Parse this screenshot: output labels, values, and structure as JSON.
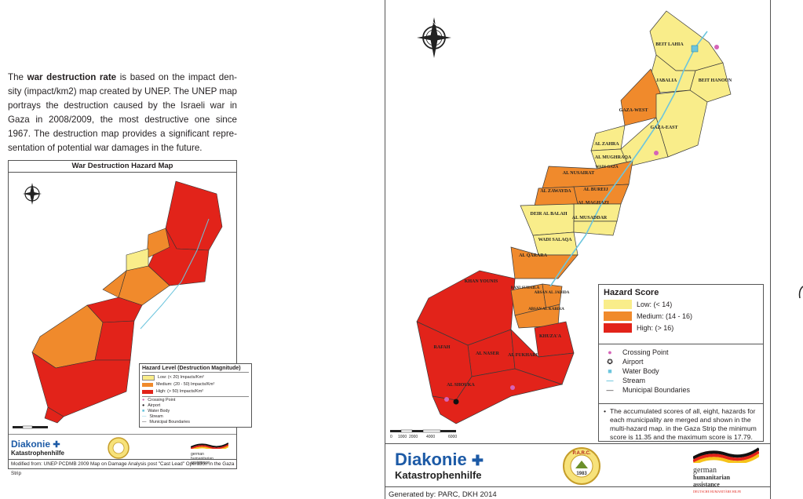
{
  "intro": {
    "text_1": "The ",
    "bold": "war destruction rate",
    "text_2": " is based on the impact den-sity (impact/km2) map created by UNEP. The UNEP map portrays the destruction caused by the Israeli war in Gaza in 2008/2009, the most destructive one since 1967. The destruction map provides a significant repre-sentation of potential war damages in the future."
  },
  "small_map": {
    "title": "War Destruction Hazard Map",
    "legend": {
      "title": "Hazard Level (Destruction Magnitude)",
      "levels": [
        {
          "label": "Low: (< 20) Impacts/Km²",
          "color": "#f9ed8a"
        },
        {
          "label": "Medium: (20 - 50) Impacts/Km²",
          "color": "#f08a2c"
        },
        {
          "label": "High: (> 50) Impacts/Km²",
          "color": "#e2231a"
        }
      ],
      "symbols": [
        {
          "label": "Crossing Point",
          "icon": "crossing-point-icon"
        },
        {
          "label": "Airport",
          "icon": "airport-icon"
        },
        {
          "label": "Water Body",
          "icon": "water-body-icon"
        },
        {
          "label": "Stream",
          "icon": "stream-icon"
        },
        {
          "label": "Municipal Boundaries",
          "icon": "boundary-line-icon"
        }
      ]
    },
    "logos": {
      "diakonie": "Diakonie",
      "diakonie_sub": "Katastrophenhilfe",
      "german_1": "german",
      "german_2": "humanitarian",
      "german_3": "assistance"
    },
    "credit": "Modified from: UNEP PCDMB 2009 Map on Damage Analysis post \"Cast Lead\" Operation in the Gaza Strip"
  },
  "big_map": {
    "place_names": [
      "BEIT LAHIA",
      "BEIT HANOUN",
      "JABALIA",
      "GAZA-WEST",
      "GAZA-EAST",
      "AL ZAHRA",
      "AL MUGHRAQA",
      "AL NUSAIRAT",
      "WADI GAZA",
      "AL ZAWAYDA",
      "AL BUREIJ",
      "AL MAGHAZI",
      "AL MUSADDAR",
      "DEIR AL BALAH",
      "WADI SALAQA",
      "AL QARARA",
      "KHAN YOUNIS",
      "BANI SUHAILA",
      "ABSAN AL JADIDA",
      "ABSAN AL KABIRA",
      "KHUZA'A",
      "AL NASER",
      "AL FUKHARI",
      "RAFAH",
      "AL SHOUKA"
    ],
    "legend": {
      "title": "Hazard Score",
      "levels": [
        {
          "label": "Low: (< 14)",
          "color": "#f9ed8a"
        },
        {
          "label": "Medium: (14 - 16)",
          "color": "#f08a2c"
        },
        {
          "label": "High: (> 16)",
          "color": "#e2231a"
        }
      ],
      "symbols": [
        {
          "label": "Crossing Point",
          "icon": "crossing-point-icon"
        },
        {
          "label": "Airport",
          "icon": "airport-icon"
        },
        {
          "label": "Water Body",
          "icon": "water-body-icon"
        },
        {
          "label": "Stream",
          "icon": "stream-icon"
        },
        {
          "label": "Municipal Boundaries",
          "icon": "boundary-line-icon"
        }
      ],
      "note": "The accumulated scores of all, eight, hazards for each municipality are merged and shown in the multi-hazard map. in the Gaza Strip the minimum score is 11.35 and the maximum score is 17.79."
    },
    "scale_labels": [
      "0",
      "1000",
      "2000",
      "4000",
      "6000"
    ],
    "logos": {
      "diakonie": "Diakonie",
      "diakonie_sub": "Katastrophenhilfe",
      "seal": "P.A.R.C.",
      "seal_year": "1983",
      "german_1": "german",
      "german_2": "humanitarian",
      "german_3": "assistance",
      "german_4": "DEUTSCHE HUMANITÄRE HILFE"
    },
    "credit": "Generated by: PARC, DKH 2014"
  },
  "colors": {
    "low": "#f9ed8a",
    "medium": "#f08a2c",
    "high": "#e2231a",
    "water": "#6cc5dd",
    "crossing": "#d564b8"
  }
}
